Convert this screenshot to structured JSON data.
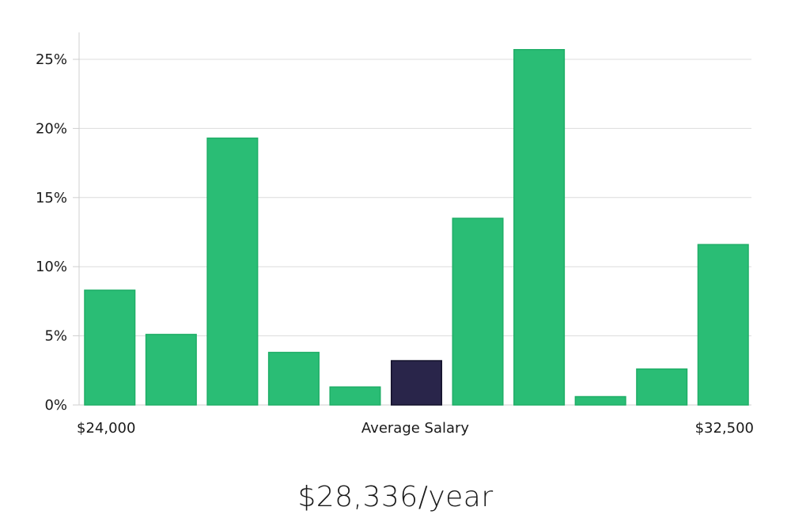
{
  "chart_data": {
    "type": "bar",
    "values": [
      8.3,
      5.1,
      19.3,
      3.8,
      1.3,
      3.2,
      13.5,
      25.7,
      0.6,
      2.6,
      11.6
    ],
    "highlight_index": 5,
    "ylim": [
      0,
      27
    ],
    "yticks": [
      {
        "value": 0,
        "label": "0%"
      },
      {
        "value": 5,
        "label": "5%"
      },
      {
        "value": 10,
        "label": "10%"
      },
      {
        "value": 15,
        "label": "15%"
      },
      {
        "value": 20,
        "label": "20%"
      },
      {
        "value": 25,
        "label": "25%"
      }
    ],
    "x_min_label": "$24,000",
    "xlabel": "Average Salary",
    "x_max_label": "$32,500",
    "grid": true,
    "colors": {
      "bar": "#2abd75",
      "bar_stroke": "#1fae67",
      "highlight": "#29254a",
      "highlight_stroke": "#12102a",
      "grid": "#dcdcdc",
      "axis": "#cfcfcf"
    }
  },
  "summary": {
    "average_salary_text": "$28,336/year"
  }
}
